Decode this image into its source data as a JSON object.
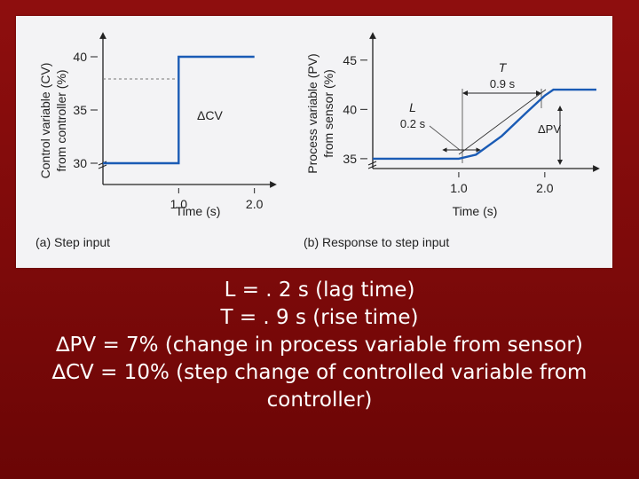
{
  "chart_data": [
    {
      "type": "line",
      "panel_label": "(a)  Step input",
      "ylabel_line1": "Control variable (CV)",
      "ylabel_line2": "from controller (%)",
      "xlabel": "Time (s)",
      "x_ticks": [
        1.0,
        2.0
      ],
      "x_tick_labels": [
        "1.0",
        "2.0"
      ],
      "y_ticks": [
        30,
        35,
        40
      ],
      "y_tick_labels": [
        "30",
        "35",
        "40"
      ],
      "annotations": {
        "delta": "ΔCV"
      },
      "series": [
        {
          "x": [
            0.0,
            1.0,
            1.0,
            2.0
          ],
          "y": [
            30,
            30,
            40,
            40
          ]
        }
      ],
      "xlim": [
        0,
        2.25
      ],
      "ylim": [
        28,
        42
      ],
      "color": "#1a5bb5"
    },
    {
      "type": "line",
      "panel_label": "(b)  Response to step input",
      "ylabel_line1": "Process variable (PV)",
      "ylabel_line2": "from sensor (%)",
      "xlabel": "Time (s)",
      "x_ticks": [
        1.0,
        2.0
      ],
      "x_tick_labels": [
        "1.0",
        "2.0"
      ],
      "y_ticks": [
        35,
        40,
        45
      ],
      "y_tick_labels": [
        "35",
        "40",
        "45"
      ],
      "annotations": {
        "T_symbol": "T",
        "T_value": "0.9 s",
        "L_symbol": "L",
        "L_value": "0.2 s",
        "delta": "ΔPV"
      },
      "series": [
        {
          "x": [
            0.0,
            1.0,
            1.2,
            1.5,
            1.8,
            2.0,
            2.1,
            2.6
          ],
          "y": [
            35,
            35,
            35.4,
            37.3,
            39.8,
            41.4,
            42,
            42
          ]
        }
      ],
      "xlim": [
        0,
        2.6
      ],
      "ylim": [
        34,
        47.5
      ],
      "color": "#1a5bb5"
    }
  ],
  "caption": {
    "line1": "L = . 2 s (lag time)",
    "line2": "T = . 9 s (rise time)",
    "line3": "∆PV = 7% (change in process variable from sensor)",
    "line4": "∆CV = 10% (step change of controlled variable from",
    "line5": "controller)"
  }
}
